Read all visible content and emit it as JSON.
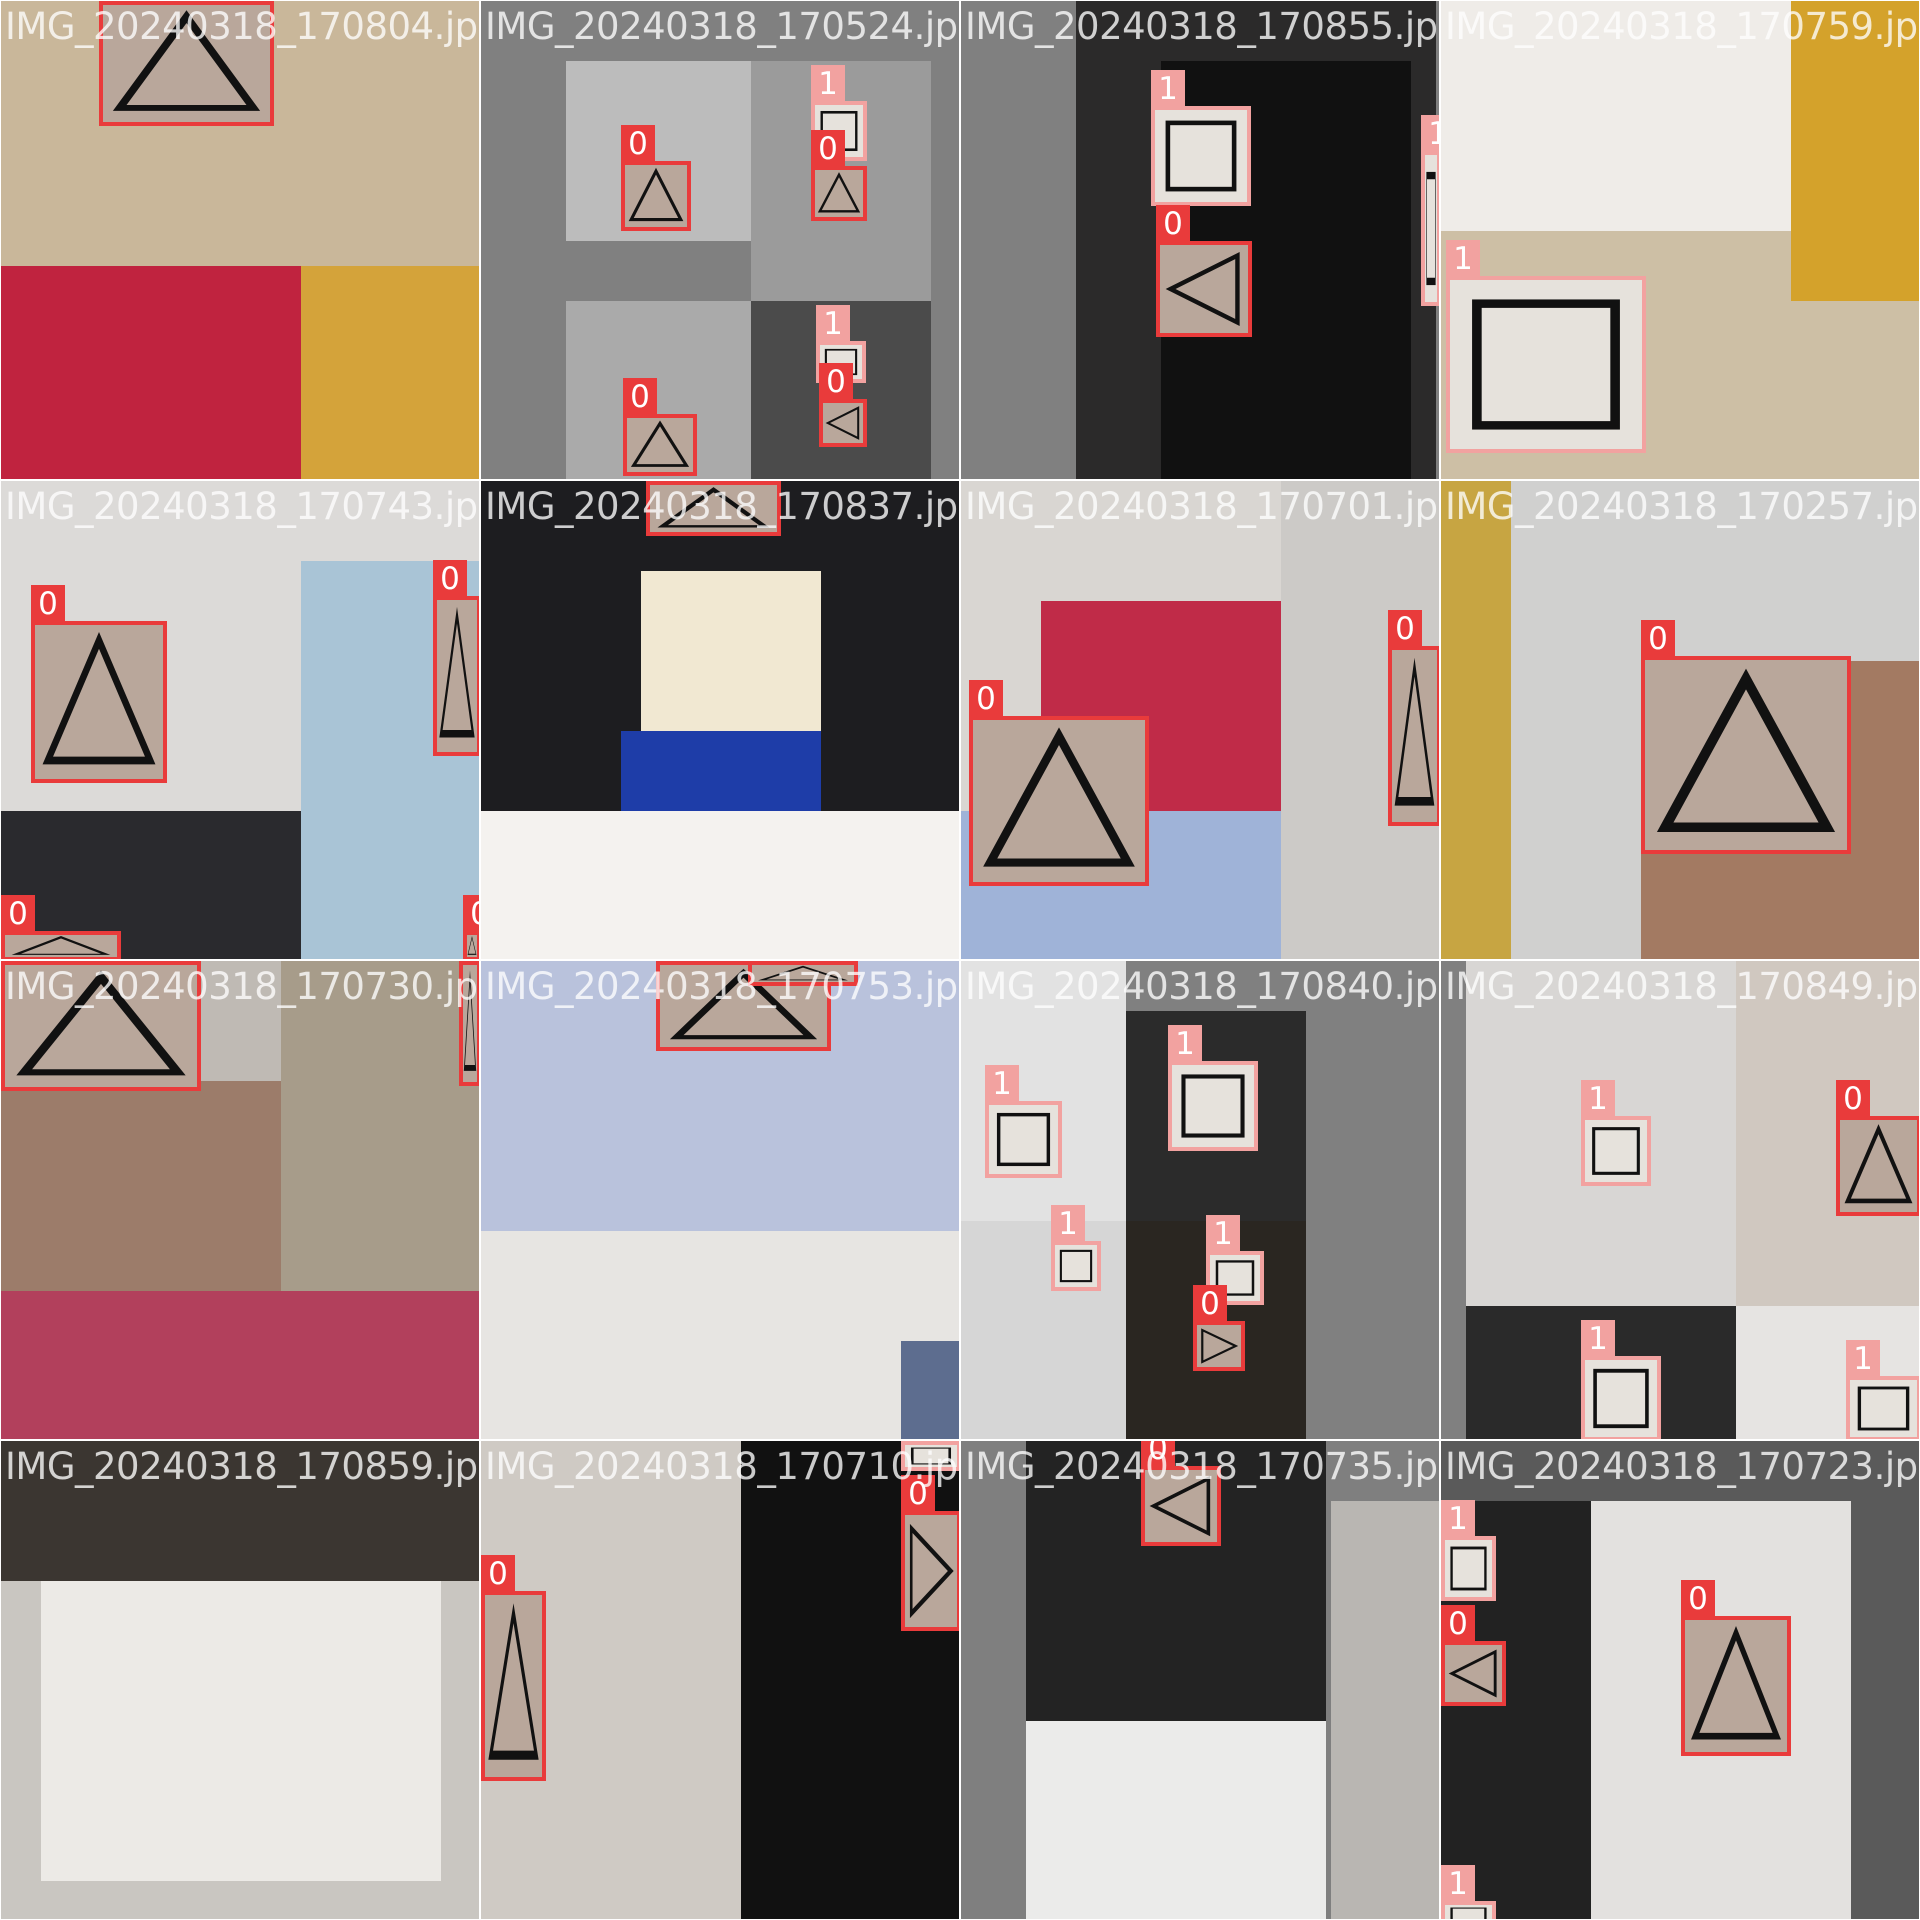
{
  "image": {
    "classes": {
      "0": {
        "label": "0",
        "shape": "triangle",
        "color": "#e93b3b"
      },
      "1": {
        "label": "1",
        "shape": "square",
        "color": "#f2a2a0"
      }
    },
    "tiles": [
      {
        "filename": "IMG_20240318_170804.jpg",
        "labels": [
          "0"
        ]
      },
      {
        "filename": "IMG_20240318_170524.jpg",
        "labels": [
          "0",
          "1",
          "0",
          "1",
          "0",
          "0"
        ]
      },
      {
        "filename": "IMG_20240318_170855.jpg",
        "labels": [
          "1",
          "0",
          "1"
        ]
      },
      {
        "filename": "IMG_20240318_170759.jpg",
        "labels": [
          "1"
        ]
      },
      {
        "filename": "IMG_20240318_170743.jpg",
        "labels": [
          "0",
          "0",
          "0",
          "0"
        ]
      },
      {
        "filename": "IMG_20240318_170837.jpg",
        "labels": [
          "0"
        ]
      },
      {
        "filename": "IMG_20240318_170701.jpg",
        "labels": [
          "0",
          "0"
        ]
      },
      {
        "filename": "IMG_20240318_170257.jpg",
        "labels": [
          "0"
        ]
      },
      {
        "filename": "IMG_20240318_170730.jpg",
        "labels": [
          "0",
          "0"
        ]
      },
      {
        "filename": "IMG_20240318_170753.jpg",
        "labels": [
          "0",
          "0"
        ]
      },
      {
        "filename": "IMG_20240318_170840.jpg",
        "labels": [
          "1",
          "1",
          "1",
          "1",
          "0"
        ]
      },
      {
        "filename": "IMG_20240318_170849.jpg",
        "labels": [
          "1",
          "0",
          "1",
          "1"
        ]
      },
      {
        "filename": "IMG_20240318_170859.jpg",
        "labels": []
      },
      {
        "filename": "IMG_20240318_170710.jpg",
        "labels": [
          "1",
          "0",
          "0"
        ]
      },
      {
        "filename": "IMG_20240318_170735.jpg",
        "labels": [
          "0"
        ]
      },
      {
        "filename": "IMG_20240318_170723.jpg",
        "labels": [
          "1",
          "0",
          "0",
          "1"
        ]
      }
    ]
  }
}
